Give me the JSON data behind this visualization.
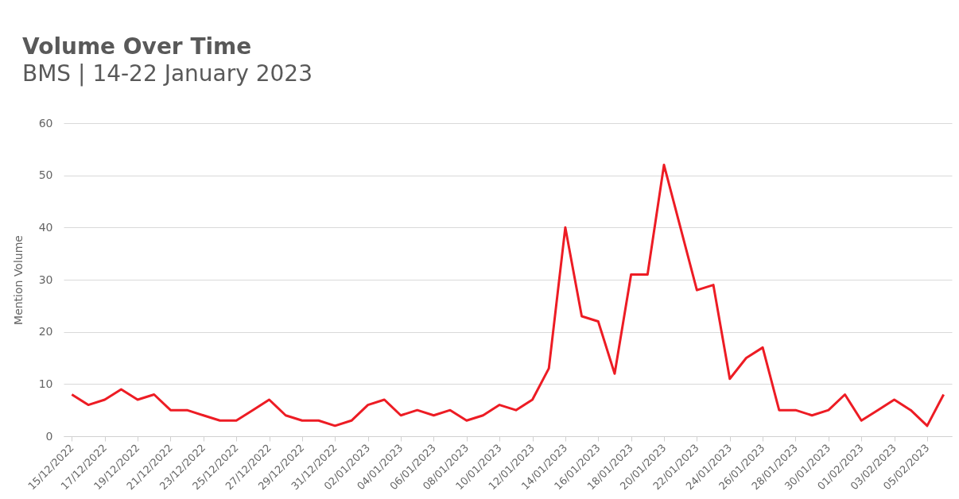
{
  "chart_data": {
    "type": "line",
    "title": "Volume Over Time",
    "subtitle": "BMS | 14-22 January 2023",
    "ylabel": "Mention Volume",
    "categories": [
      "15/12/2022",
      null,
      "17/12/2022",
      null,
      "19/12/2022",
      null,
      "21/12/2022",
      null,
      "23/12/2022",
      null,
      "25/12/2022",
      null,
      "27/12/2022",
      null,
      "29/12/2022",
      null,
      "31/12/2022",
      null,
      "02/01/2023",
      null,
      "04/01/2023",
      null,
      "06/01/2023",
      null,
      "08/01/2023",
      null,
      "10/01/2023",
      null,
      "12/01/2023",
      null,
      "14/01/2023",
      null,
      "16/01/2023",
      null,
      "18/01/2023",
      null,
      "20/01/2023",
      null,
      "22/01/2023",
      null,
      "24/01/2023",
      null,
      "26/01/2023",
      null,
      "28/01/2023",
      null,
      "30/01/2023",
      null,
      "01/02/2023",
      null,
      "03/02/2023",
      null,
      "05/02/2023",
      null
    ],
    "series": [
      {
        "color": "#ed1c24",
        "values": [
          8,
          6,
          7,
          9,
          7,
          8,
          5,
          5,
          4,
          3,
          3,
          5,
          7,
          4,
          3,
          3,
          2,
          3,
          6,
          7,
          4,
          5,
          4,
          5,
          3,
          4,
          6,
          5,
          7,
          13,
          40,
          23,
          22,
          12,
          31,
          31,
          52,
          40,
          28,
          29,
          11,
          15,
          17,
          5,
          5,
          4,
          5,
          8,
          3,
          5,
          7,
          5,
          2,
          8
        ]
      }
    ],
    "ylim": [
      0,
      60
    ],
    "yticks": [
      0,
      10,
      20,
      30,
      40,
      50,
      60
    ],
    "grid": true
  }
}
